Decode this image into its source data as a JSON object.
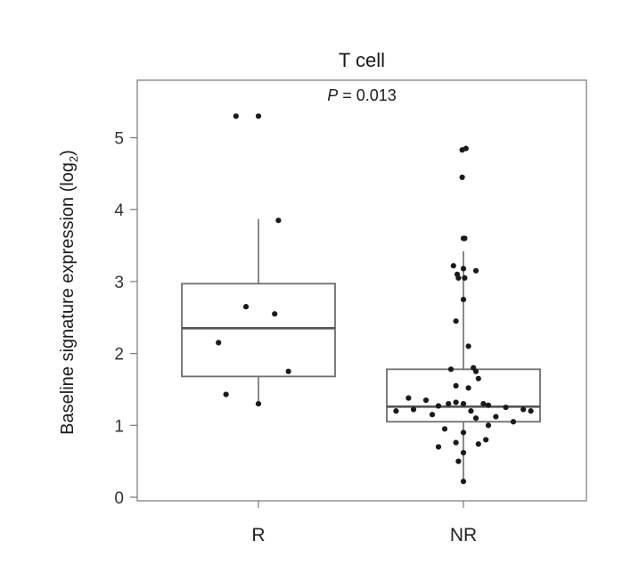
{
  "chart_data": {
    "type": "box",
    "title": "T cell",
    "annotation": {
      "prefix": "P",
      "text": " = 0.013"
    },
    "ylabel": {
      "main": "Baseline signature expression (log",
      "sub": "2",
      "close": ")"
    },
    "xlabel": "",
    "ylim": [
      -0.05,
      5.8
    ],
    "yticks": [
      0,
      1,
      2,
      3,
      4,
      5
    ],
    "grid": false,
    "categories": [
      "R",
      "NR"
    ],
    "boxes": [
      {
        "category": "R",
        "whisker_low": 1.3,
        "q1": 1.68,
        "median": 2.35,
        "q3": 2.97,
        "whisker_high": 3.87
      },
      {
        "category": "NR",
        "whisker_low": 0.22,
        "q1": 1.05,
        "median": 1.26,
        "q3": 1.78,
        "whisker_high": 3.42
      }
    ],
    "points": [
      {
        "category": "R",
        "values": [
          5.3,
          5.3,
          3.85,
          2.65,
          2.55,
          2.15,
          1.75,
          1.43,
          1.3
        ],
        "jitter": [
          -0.18,
          0.0,
          0.16,
          -0.1,
          0.13,
          -0.32,
          0.24,
          -0.26,
          0.0
        ]
      },
      {
        "category": "NR",
        "values": [
          4.85,
          4.83,
          4.45,
          3.6,
          3.6,
          3.22,
          3.18,
          3.15,
          3.1,
          3.05,
          3.05,
          2.75,
          2.45,
          2.1,
          1.8,
          1.78,
          1.75,
          1.65,
          1.55,
          1.52,
          1.38,
          1.35,
          1.32,
          1.3,
          1.3,
          1.3,
          1.28,
          1.27,
          1.25,
          1.22,
          1.22,
          1.2,
          1.2,
          1.2,
          1.15,
          1.12,
          1.1,
          1.05,
          1.0,
          0.95,
          0.9,
          0.8,
          0.76,
          0.74,
          0.7,
          0.62,
          0.5,
          0.22
        ],
        "jitter": [
          0.02,
          -0.01,
          -0.01,
          0.01,
          0.0,
          -0.08,
          0.0,
          0.1,
          -0.05,
          0.01,
          -0.04,
          0.0,
          -0.06,
          0.04,
          0.08,
          -0.1,
          0.1,
          0.12,
          -0.06,
          0.04,
          -0.44,
          -0.3,
          -0.06,
          -0.12,
          0.0,
          0.16,
          0.2,
          -0.2,
          0.34,
          0.48,
          -0.4,
          -0.54,
          0.06,
          0.54,
          -0.25,
          0.26,
          0.1,
          0.4,
          0.2,
          -0.15,
          0.0,
          0.18,
          -0.06,
          0.12,
          -0.2,
          0.0,
          -0.04,
          0.0
        ]
      }
    ],
    "colors": {
      "box_edge": "#6e6e6e",
      "median": "#555555",
      "point": "#1a1a1a",
      "frame": "#777777"
    }
  }
}
